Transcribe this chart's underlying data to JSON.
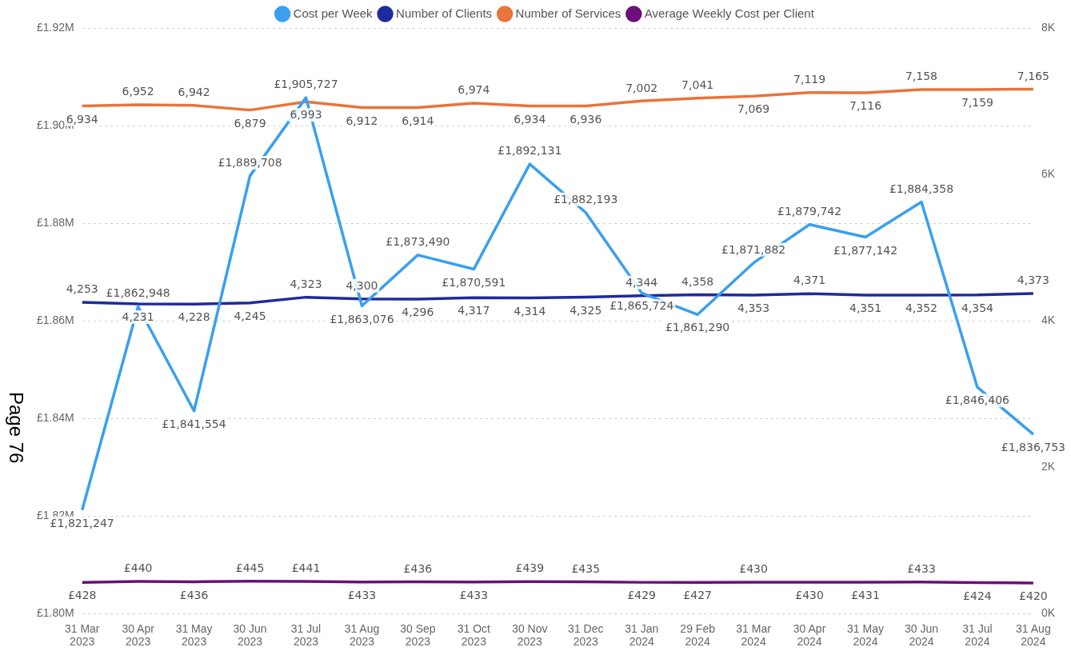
{
  "chart_data": {
    "type": "line",
    "categories": [
      "31 Mar 2023",
      "30 Apr 2023",
      "31 May 2023",
      "30 Jun 2023",
      "31 Jul 2023",
      "31 Aug 2023",
      "30 Sep 2023",
      "31 Oct 2023",
      "30 Nov 2023",
      "31 Dec 2023",
      "31 Jan 2024",
      "29 Feb 2024",
      "31 Mar 2024",
      "30 Apr 2024",
      "31 May 2024",
      "30 Jun 2024",
      "31 Jul 2024",
      "31 Aug 2024"
    ],
    "series": [
      {
        "name": "Cost per Week",
        "color": "#3a9ff0",
        "axis": "y",
        "values": [
          1821247,
          1862948,
          1841554,
          1889708,
          1905727,
          1863076,
          1873490,
          1870591,
          1892131,
          1882193,
          1865724,
          1861290,
          1871882,
          1879742,
          1877142,
          1884358,
          1846406,
          1836753
        ],
        "value_labels": [
          "£1,821,247",
          "£1,862,948",
          "£1,841,554",
          "£1,889,708",
          "£1,905,727",
          "£1,863,076",
          "£1,873,490",
          "£1,870,591",
          "£1,892,131",
          "£1,882,193",
          "£1,865,724",
          "£1,861,290",
          "£1,871,882",
          "£1,879,742",
          "£1,877,142",
          "£1,884,358",
          "£1,846,406",
          "£1,836,753"
        ]
      },
      {
        "name": "Number of Clients",
        "color": "#1f2a9c",
        "axis": "y2",
        "values": [
          4253,
          4231,
          4228,
          4245,
          4323,
          4300,
          4296,
          4317,
          4314,
          4325,
          4344,
          4358,
          4353,
          4371,
          4351,
          4352,
          4354,
          4373
        ],
        "value_labels": [
          "4,253",
          "4,231",
          "4,228",
          "4,245",
          "4,323",
          "4,300",
          "4,296",
          "4,317",
          "4,314",
          "4,325",
          "4,344",
          "4,358",
          "4,353",
          "4,371",
          "4,351",
          "4,352",
          "4,354",
          "4,373"
        ]
      },
      {
        "name": "Number of Services",
        "color": "#e8743b",
        "axis": "y2",
        "values": [
          6934,
          6952,
          6942,
          6879,
          6993,
          6912,
          6914,
          6974,
          6934,
          6936,
          7002,
          7041,
          7069,
          7119,
          7116,
          7158,
          7159,
          7165
        ],
        "value_labels": [
          "6,934",
          "6,952",
          "6,942",
          "6,879",
          "6,993",
          "6,912",
          "6,914",
          "6,974",
          "6,934",
          "6,936",
          "7,002",
          "7,041",
          "7,069",
          "7,119",
          "7,116",
          "7,158",
          "7,159",
          "7,165"
        ]
      },
      {
        "name": "Average Weekly Cost per Client",
        "color": "#6b0f7a",
        "axis": "y2",
        "values": [
          428,
          440,
          436,
          445,
          441,
          433,
          436,
          433,
          439,
          435,
          429,
          427,
          430,
          430,
          431,
          433,
          424,
          420
        ],
        "value_labels": [
          "£428",
          "£440",
          "£436",
          "£445",
          "£441",
          "£433",
          "£436",
          "£433",
          "£439",
          "£435",
          "£429",
          "£427",
          "£430",
          "£430",
          "£431",
          "£433",
          "£424",
          "£420"
        ]
      }
    ],
    "ylim": [
      1800000,
      1920000
    ],
    "yticks": [
      {
        "value": 1800000,
        "label": "£1.80M"
      },
      {
        "value": 1820000,
        "label": "£1.82M"
      },
      {
        "value": 1840000,
        "label": "£1.84M"
      },
      {
        "value": 1860000,
        "label": "£1.86M"
      },
      {
        "value": 1880000,
        "label": "£1.88M"
      },
      {
        "value": 1900000,
        "label": "£1.90M"
      },
      {
        "value": 1920000,
        "label": "£1.92M"
      }
    ],
    "y2lim": [
      0,
      8000
    ],
    "y2ticks": [
      {
        "value": 0,
        "label": "0K"
      },
      {
        "value": 2000,
        "label": "2K"
      },
      {
        "value": 4000,
        "label": "4K"
      },
      {
        "value": 6000,
        "label": "6K"
      },
      {
        "value": 8000,
        "label": "8K"
      }
    ],
    "grid": "y",
    "legend": "top",
    "marker": "none",
    "annotations": [
      "Page 76"
    ]
  }
}
